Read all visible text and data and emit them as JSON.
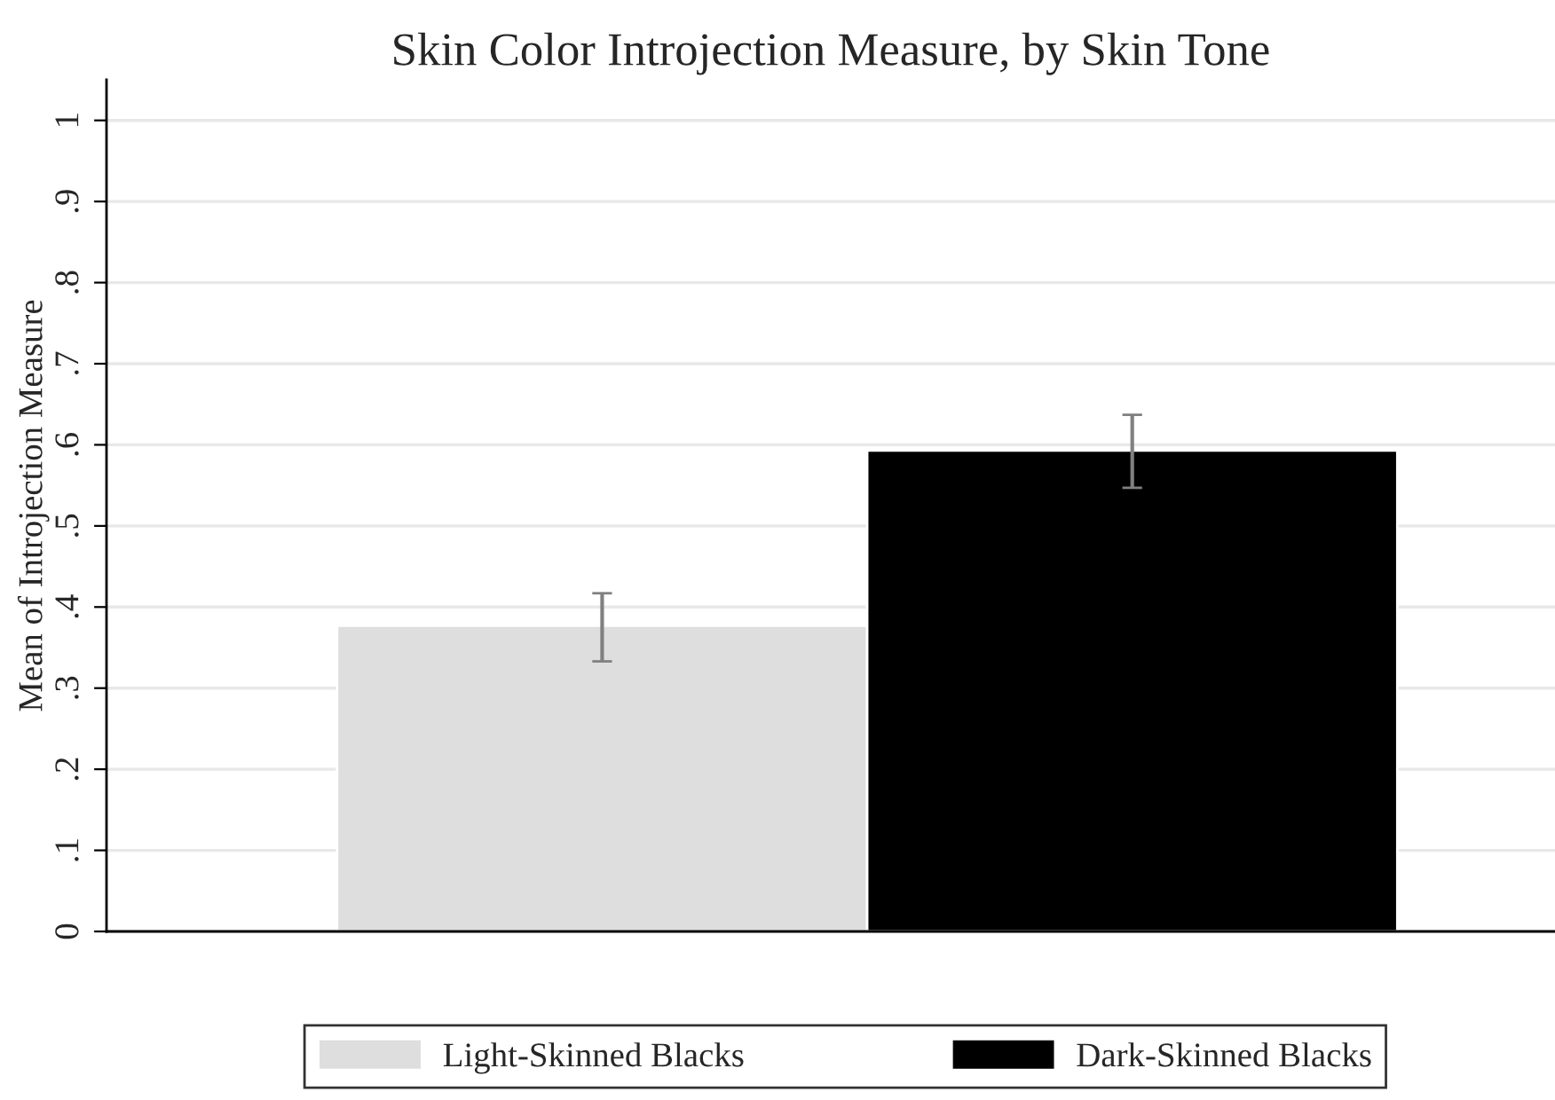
{
  "chart_data": {
    "type": "bar",
    "title": "Skin Color Introjection Measure, by Skin Tone",
    "ylabel": "Mean of Introjection Measure",
    "categories": [
      null
    ],
    "series": [
      {
        "name": "Light-Skinned Blacks",
        "color": "#dedede",
        "values": [
          0.377
        ],
        "errors": [
          [
            0.333,
            0.417
          ]
        ]
      },
      {
        "name": "Dark-Skinned Blacks",
        "color": "#000000",
        "values": [
          0.593
        ],
        "errors": [
          [
            0.547,
            0.637
          ]
        ]
      }
    ],
    "ylim": [
      0,
      1.05
    ],
    "yticks": [
      0,
      {
        "value": 0.1,
        "label": ".1"
      },
      {
        "value": 0.2,
        "label": ".2"
      },
      {
        "value": 0.3,
        "label": ".3"
      },
      {
        "value": 0.4,
        "label": ".4"
      },
      {
        "value": 0.5,
        "label": ".5"
      },
      {
        "value": 0.6,
        "label": ".6"
      },
      {
        "value": 0.7,
        "label": ".7"
      },
      {
        "value": 0.8,
        "label": ".8"
      },
      {
        "value": 0.9,
        "label": ".9"
      },
      1
    ],
    "grid": "y",
    "legend": "bottom"
  }
}
